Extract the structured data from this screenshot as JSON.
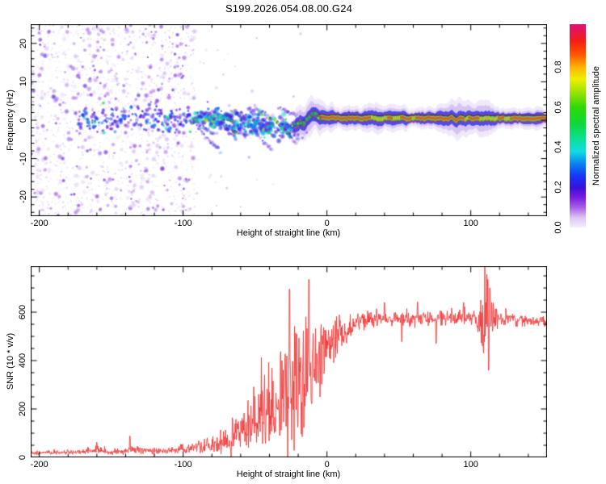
{
  "title": "S199.2026.054.08.00.G24",
  "colors": {
    "background": "#ffffff",
    "axis": "#000000",
    "snr_line": "#ee3333",
    "fit_line": "#1b1b1b"
  },
  "chart_data": [
    {
      "type": "heatmap",
      "panel": "spectrogram",
      "xlabel": "Height of straight line (km)",
      "ylabel": "Frequency (Hz)",
      "xlim": [
        -206,
        153
      ],
      "ylim": [
        -25,
        25
      ],
      "x_major_ticks": [
        -200,
        -100,
        0,
        100
      ],
      "x_minor_step": 20,
      "y_major_ticks": [
        -20,
        -10,
        0,
        10,
        20
      ],
      "y_minor_step": 2,
      "grid": false,
      "colorbar": {
        "label": "Normalized spectral amplitude",
        "tick_labels": [
          "0.0",
          "0.2",
          "0.4",
          "0.6",
          "0.8"
        ],
        "tick_values": [
          0,
          0.2,
          0.4,
          0.6,
          0.8
        ],
        "range": [
          0,
          1.01
        ],
        "stops": [
          [
            0.0,
            "#f6f1fc"
          ],
          [
            0.05,
            "#ddc6f2"
          ],
          [
            0.1,
            "#a863e8"
          ],
          [
            0.15,
            "#7a1fe0"
          ],
          [
            0.2,
            "#3a10d8"
          ],
          [
            0.26,
            "#1638f8"
          ],
          [
            0.32,
            "#0884f0"
          ],
          [
            0.38,
            "#12dce4"
          ],
          [
            0.45,
            "#0ce08c"
          ],
          [
            0.52,
            "#0cd838"
          ],
          [
            0.6,
            "#30d808"
          ],
          [
            0.68,
            "#a0e400"
          ],
          [
            0.74,
            "#eef000"
          ],
          [
            0.8,
            "#ffb400"
          ],
          [
            0.86,
            "#ff5a00"
          ],
          [
            0.93,
            "#f51e14"
          ],
          [
            1.0,
            "#e0136b"
          ]
        ]
      },
      "features": {
        "noise_field": {
          "x_range": [
            -206,
            -92
          ],
          "freq_range": [
            -25,
            25
          ],
          "peak_amplitude": 0.2
        },
        "noise_band": {
          "x_range": [
            -173,
            -94
          ],
          "center_freq": 0.4,
          "spread_hz": 1.7,
          "peak_amplitude": 0.45
        },
        "streak_cluster": {
          "x_range": [
            -94,
            -21
          ],
          "track": [
            [
              -94,
              0.5
            ],
            [
              -88,
              0.1
            ],
            [
              -82,
              0.8
            ],
            [
              -76,
              -0.4
            ],
            [
              -70,
              0.2
            ],
            [
              -64,
              -1.0
            ],
            [
              -58,
              -0.3
            ],
            [
              -52,
              -1.5
            ],
            [
              -46,
              -0.7
            ],
            [
              -40,
              -2.0
            ],
            [
              -34,
              -1.2
            ],
            [
              -28,
              -1.8
            ],
            [
              -22,
              -1.2
            ]
          ],
          "peak_amplitude": 0.6
        },
        "carrier_line": {
          "x_range": [
            -22,
            153
          ],
          "track": [
            [
              -22,
              -1.3
            ],
            [
              -19,
              -0.6
            ],
            [
              -16,
              -0.9
            ],
            [
              -14,
              0.1
            ],
            [
              -12,
              0.8
            ],
            [
              -10,
              1.7
            ],
            [
              -8,
              1.5
            ],
            [
              -6,
              0.7
            ],
            [
              -4,
              0.9
            ],
            [
              0,
              0.5
            ],
            [
              6,
              0.7
            ],
            [
              12,
              0.5
            ],
            [
              18,
              0.6
            ],
            [
              24,
              0.5
            ],
            [
              30,
              0.7
            ],
            [
              36,
              0.4
            ],
            [
              42,
              0.6
            ],
            [
              48,
              0.5
            ],
            [
              52,
              0.8
            ],
            [
              56,
              0.4
            ],
            [
              62,
              0.6
            ],
            [
              68,
              0.5
            ],
            [
              74,
              0.6
            ],
            [
              80,
              0.5
            ],
            [
              84,
              0.3
            ],
            [
              87,
              0.9
            ],
            [
              90,
              -0.1
            ],
            [
              93,
              0.8
            ],
            [
              96,
              0.2
            ],
            [
              99,
              0.7
            ],
            [
              102,
              0.3
            ],
            [
              105,
              0.7
            ],
            [
              108,
              0.3
            ],
            [
              111,
              0.6
            ],
            [
              114,
              0.4
            ],
            [
              118,
              0.55
            ],
            [
              125,
              0.5
            ],
            [
              135,
              0.55
            ],
            [
              145,
              0.5
            ],
            [
              153,
              0.5
            ]
          ],
          "halo_width": [
            [
              -22,
              1.5
            ],
            [
              -12,
              1.7
            ],
            [
              -2,
              1.3
            ],
            [
              10,
              1.0
            ],
            [
              25,
              1.1
            ],
            [
              35,
              1.3
            ],
            [
              45,
              1.25
            ],
            [
              55,
              1.0
            ],
            [
              65,
              0.95
            ],
            [
              75,
              1.05
            ],
            [
              83,
              1.5
            ],
            [
              90,
              1.8
            ],
            [
              100,
              1.5
            ],
            [
              108,
              1.6
            ],
            [
              115,
              1.2
            ],
            [
              125,
              0.9
            ],
            [
              140,
              0.85
            ],
            [
              153,
              0.9
            ]
          ],
          "core_amplitude": 0.95,
          "has_dark_fit_line": true
        }
      }
    },
    {
      "type": "line",
      "panel": "snr",
      "xlabel": "Height of straight line (km)",
      "ylabel": "SNR (10 * v/v)",
      "xlim": [
        -206,
        153
      ],
      "ylim": [
        0,
        790
      ],
      "x_major_ticks": [
        -200,
        -100,
        0,
        100
      ],
      "x_minor_step": 20,
      "y_major_ticks": [
        0,
        200,
        400,
        600
      ],
      "y_minor_step": 50,
      "grid": false,
      "series": [
        {
          "name": "SNR",
          "color": "#ee3333",
          "envelope_x_mean_vol": [
            [
              -206,
              18,
              7
            ],
            [
              -185,
              20,
              8
            ],
            [
              -170,
              22,
              9
            ],
            [
              -160,
              30,
              16
            ],
            [
              -152,
              22,
              9
            ],
            [
              -140,
              26,
              12
            ],
            [
              -134,
              34,
              18
            ],
            [
              -124,
              26,
              11
            ],
            [
              -112,
              28,
              12
            ],
            [
              -100,
              32,
              14
            ],
            [
              -90,
              40,
              22
            ],
            [
              -80,
              52,
              30
            ],
            [
              -70,
              68,
              42
            ],
            [
              -62,
              95,
              60
            ],
            [
              -55,
              130,
              85
            ],
            [
              -48,
              165,
              115
            ],
            [
              -42,
              195,
              140
            ],
            [
              -36,
              225,
              165
            ],
            [
              -30,
              255,
              185
            ],
            [
              -24,
              280,
              205
            ],
            [
              -18,
              300,
              210
            ],
            [
              -12,
              320,
              185
            ],
            [
              -7,
              360,
              145
            ],
            [
              -2,
              410,
              110
            ],
            [
              3,
              455,
              90
            ],
            [
              8,
              490,
              75
            ],
            [
              13,
              520,
              60
            ],
            [
              18,
              545,
              45
            ],
            [
              24,
              562,
              32
            ],
            [
              32,
              572,
              24
            ],
            [
              45,
              576,
              22
            ],
            [
              60,
              573,
              24
            ],
            [
              75,
              574,
              26
            ],
            [
              88,
              580,
              24
            ],
            [
              100,
              576,
              24
            ],
            [
              106,
              572,
              40
            ],
            [
              109,
              565,
              150
            ],
            [
              111,
              560,
              170
            ],
            [
              113,
              572,
              130
            ],
            [
              116,
              570,
              60
            ],
            [
              120,
              572,
              28
            ],
            [
              130,
              570,
              20
            ],
            [
              142,
              566,
              18
            ],
            [
              153,
              563,
              18
            ]
          ],
          "notable_spikes": [
            [
              -160,
              62
            ],
            [
              -137,
              88
            ],
            [
              -26,
              695
            ],
            [
              -12.5,
              735
            ],
            [
              40,
              640
            ],
            [
              52,
              478
            ],
            [
              63,
              642
            ],
            [
              76,
              470
            ],
            [
              95,
              640
            ],
            [
              110.5,
              640
            ],
            [
              111.8,
              735
            ],
            [
              112.5,
              360
            ],
            [
              113.2,
              700
            ]
          ]
        }
      ]
    }
  ]
}
